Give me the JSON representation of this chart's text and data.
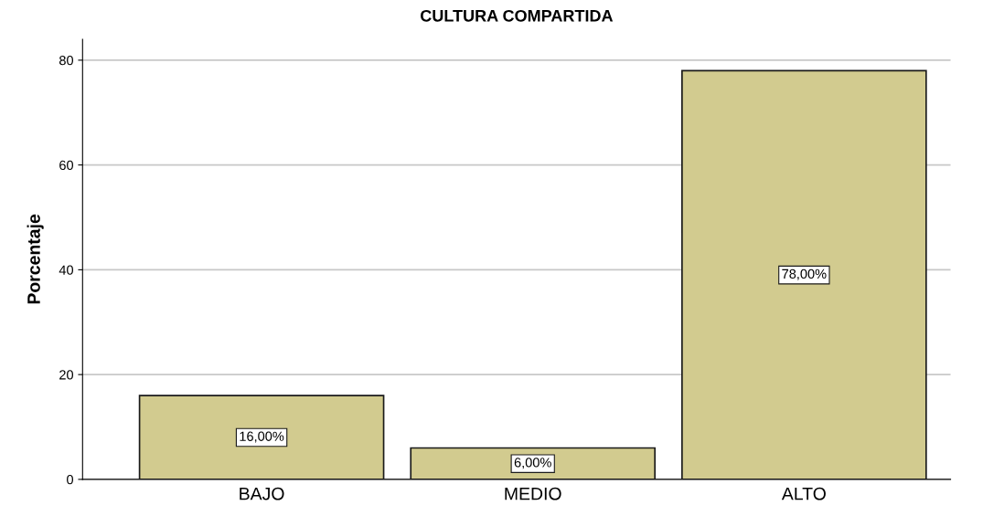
{
  "chart_data": {
    "type": "bar",
    "title": "CULTURA COMPARTIDA",
    "ylabel": "Porcentaje",
    "categories": [
      "BAJO",
      "MEDIO",
      "ALTO"
    ],
    "values": [
      16,
      6,
      78
    ],
    "value_labels": [
      "16,00%",
      "6,00%",
      "78,00%"
    ],
    "color": "#d2cb8f",
    "ylim": [
      0,
      84
    ],
    "yticks": [
      0,
      20,
      40,
      60,
      80
    ],
    "grid": "y"
  }
}
